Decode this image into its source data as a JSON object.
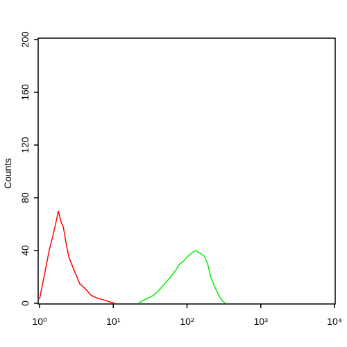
{
  "chart_data": {
    "type": "line",
    "ylabel": "Counts",
    "xscale": "log",
    "xlim": [
      1,
      10000
    ],
    "ylim": [
      0,
      200
    ],
    "xticks": [
      {
        "value": 1,
        "label": "10⁰"
      },
      {
        "value": 10,
        "label": "10¹"
      },
      {
        "value": 100,
        "label": "10²"
      },
      {
        "value": 1000,
        "label": "10³"
      },
      {
        "value": 10000,
        "label": "10⁴"
      }
    ],
    "yticks": [
      0,
      40,
      80,
      120,
      160,
      200
    ],
    "series": [
      {
        "color": "#ff0000",
        "x": [
          1,
          1.1,
          1.2,
          1.35,
          1.5,
          1.65,
          1.8,
          1.95,
          2.1,
          2.3,
          2.5,
          2.8,
          3.1,
          3.5,
          4,
          4.5,
          5,
          6,
          7,
          8,
          9,
          10.5
        ],
        "values": [
          3,
          15,
          25,
          40,
          50,
          60,
          70,
          62,
          58,
          45,
          35,
          28,
          22,
          15,
          12,
          9,
          6,
          4,
          3,
          2,
          1,
          0
        ]
      },
      {
        "color": "#00ee00",
        "x": [
          22,
          25,
          30,
          35,
          40,
          45,
          50,
          60,
          70,
          80,
          90,
          100,
          115,
          130,
          150,
          170,
          190,
          210,
          240,
          270,
          300,
          330
        ],
        "values": [
          0,
          2,
          4,
          6,
          9,
          12,
          15,
          20,
          25,
          30,
          32,
          35,
          38,
          40,
          38,
          36,
          30,
          20,
          12,
          6,
          2,
          0
        ]
      }
    ]
  }
}
